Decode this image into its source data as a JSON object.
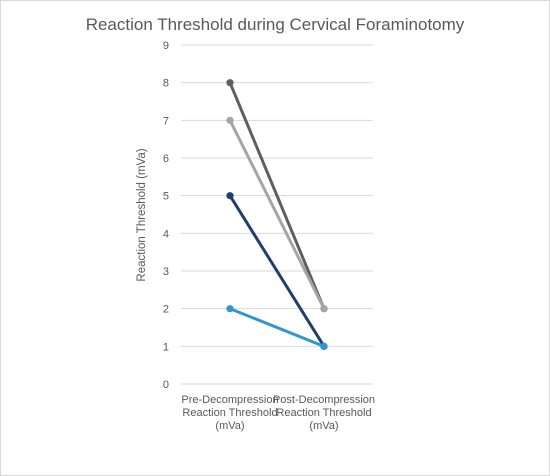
{
  "chart_data": {
    "type": "line",
    "title": "Reaction Threshold during Cervical Foraminotomy",
    "ylabel": "Reaction Threshold (mVa)",
    "xlabel": "",
    "categories": [
      [
        "Pre-Decompression",
        "Reaction Threshold",
        "(mVa)"
      ],
      [
        "Post-Decompression",
        "Reaction Threshold",
        "(mVa)"
      ]
    ],
    "ylim": [
      0,
      9
    ],
    "yticks": [
      "0",
      "1",
      "2",
      "3",
      "4",
      "5",
      "6",
      "7",
      "8",
      "9"
    ],
    "grid": true,
    "legend": "none",
    "series": [
      {
        "values": [
          8,
          2
        ],
        "color": "#5f5f5f"
      },
      {
        "values": [
          7,
          2
        ],
        "color": "#a5a5a5"
      },
      {
        "values": [
          5,
          1
        ],
        "color": "#1f3f6e"
      },
      {
        "values": [
          2,
          1
        ],
        "color": "#2e97cf"
      }
    ]
  }
}
